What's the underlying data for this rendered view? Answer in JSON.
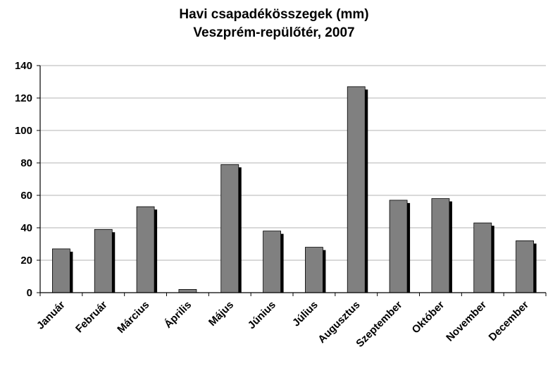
{
  "chart_data": {
    "type": "bar",
    "title": "Havi csapadékösszegek (mm)",
    "subtitle": "Veszprém-repülőtér, 2007",
    "xlabel": "",
    "ylabel": "",
    "ylim": [
      0,
      140
    ],
    "yticks": [
      0,
      20,
      40,
      60,
      80,
      100,
      120,
      140
    ],
    "grid": true,
    "legend": "none",
    "categories": [
      "Január",
      "Február",
      "Március",
      "Április",
      "Május",
      "Június",
      "Július",
      "Augusztus",
      "Szeptember",
      "Október",
      "November",
      "December"
    ],
    "values": [
      27,
      39,
      53,
      2,
      79,
      38,
      28,
      127,
      57,
      58,
      43,
      32
    ],
    "colors": {
      "bar": "#808080",
      "shadow": "#000000",
      "grid": "#b3b3b3",
      "axis": "#000000"
    }
  }
}
